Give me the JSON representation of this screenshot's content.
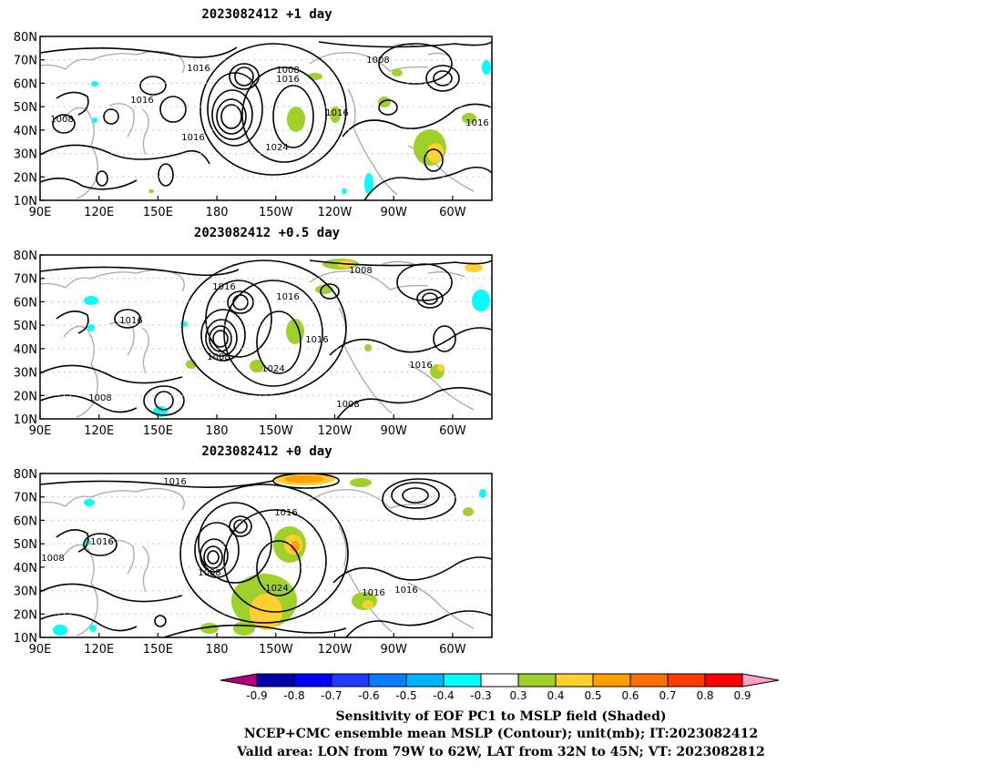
{
  "panels": [
    {
      "title": "2023082412  +1 day",
      "contour_labels": [
        "1016",
        "1008",
        "1016",
        "1008",
        "1016",
        "1008",
        "1016",
        "1016",
        "1016",
        "1024",
        "1016"
      ]
    },
    {
      "title": "2023082412  +0.5 day",
      "contour_labels": [
        "1008",
        "1016",
        "1016",
        "1016",
        "1008",
        "1016",
        "1024",
        "1016",
        "1008",
        "1008"
      ]
    },
    {
      "title": "2023082412  +0 day",
      "contour_labels": [
        "1016",
        "1016",
        "1016",
        "1008",
        "1008",
        "1024",
        "1016",
        "1016"
      ]
    }
  ],
  "axes": {
    "lat_ticks": [
      "80N",
      "70N",
      "60N",
      "50N",
      "40N",
      "30N",
      "20N",
      "10N"
    ],
    "lon_ticks": [
      "90E",
      "120E",
      "150E",
      "180",
      "150W",
      "120W",
      "90W",
      "60W"
    ]
  },
  "colorbar": {
    "labels": [
      "-0.9",
      "-0.8",
      "-0.7",
      "-0.6",
      "-0.5",
      "-0.4",
      "-0.3",
      "0.3",
      "0.4",
      "0.5",
      "0.6",
      "0.7",
      "0.8",
      "0.9"
    ],
    "colors": [
      "#b4007f",
      "#0000a8",
      "#0000ff",
      "#1e3cff",
      "#0a7cff",
      "#00b4ff",
      "#00ffff",
      "#ffffff",
      "#a0d02a",
      "#ffd030",
      "#ffa000",
      "#ff6e00",
      "#ff3a00",
      "#ff0000",
      "#ffa0c8"
    ]
  },
  "footer": {
    "line1": "Sensitivity of EOF PC1 to MSLP field (Shaded)",
    "line2": "NCEP+CMC ensemble mean MSLP (Contour); unit(mb); IT:2023082412",
    "line3": "Valid area: LON from 79W to 62W, LAT from 32N to 45N; VT: 2023082812"
  }
}
